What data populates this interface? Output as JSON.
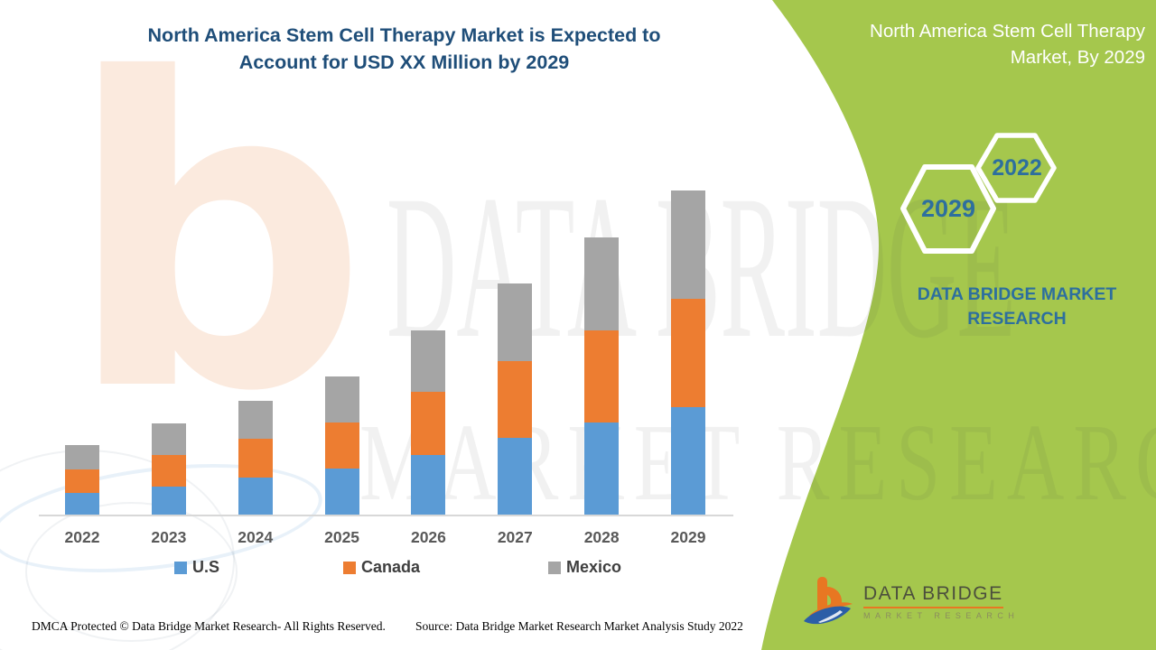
{
  "header": {
    "title_line1": "North America Stem Cell Therapy Market is Expected to",
    "title_line2": "Account for USD XX Million by 2029",
    "title_color": "#1f4e79"
  },
  "side_panel": {
    "background_color": "#a5c74d",
    "heading_line1": "North America Stem Cell Therapy",
    "heading_line2": "Market, By 2029",
    "heading_color": "#ffffff",
    "hexagons": [
      {
        "label": "2029"
      },
      {
        "label": "2022"
      }
    ],
    "hexagon_text_color": "#2d6f9e",
    "brand_line1": "DATA BRIDGE MARKET",
    "brand_line2": "RESEARCH",
    "brand_color": "#2d6f9e"
  },
  "chart_data": {
    "type": "bar",
    "stacked": true,
    "title": "North America Stem Cell Therapy Market is Expected to Account for USD XX Million by 2029",
    "xlabel": "",
    "ylabel": "",
    "grid": false,
    "legend_position": "bottom",
    "axis_note": "No numeric y-axis shown; values are relative stacked heights (USD XX Million placeholder)",
    "ylim": [
      0,
      380
    ],
    "categories": [
      "2022",
      "2023",
      "2024",
      "2025",
      "2026",
      "2027",
      "2028",
      "2029"
    ],
    "series": [
      {
        "name": "U.S",
        "color": "#5b9bd5",
        "values": [
          25,
          32,
          42,
          52,
          67,
          86,
          103,
          120
        ]
      },
      {
        "name": "Canada",
        "color": "#ed7d31",
        "values": [
          26,
          35,
          43,
          51,
          70,
          85,
          102,
          120
        ]
      },
      {
        "name": "Mexico",
        "color": "#a5a5a5",
        "values": [
          27,
          35,
          42,
          51,
          68,
          86,
          103,
          120
        ]
      }
    ]
  },
  "watermarks": {
    "logo_b_glyph": "b",
    "big_text1": "DATA BRIDGE",
    "big_text2": "MARKET RESEARCH"
  },
  "footer": {
    "dmca": "DMCA Protected © Data Bridge Market Research- All Rights Reserved.",
    "source": "Source: Data Bridge Market Research Market Analysis Study 2022"
  },
  "logo": {
    "name": "DATA BRIDGE",
    "sub": "MARKET RESEARCH"
  }
}
